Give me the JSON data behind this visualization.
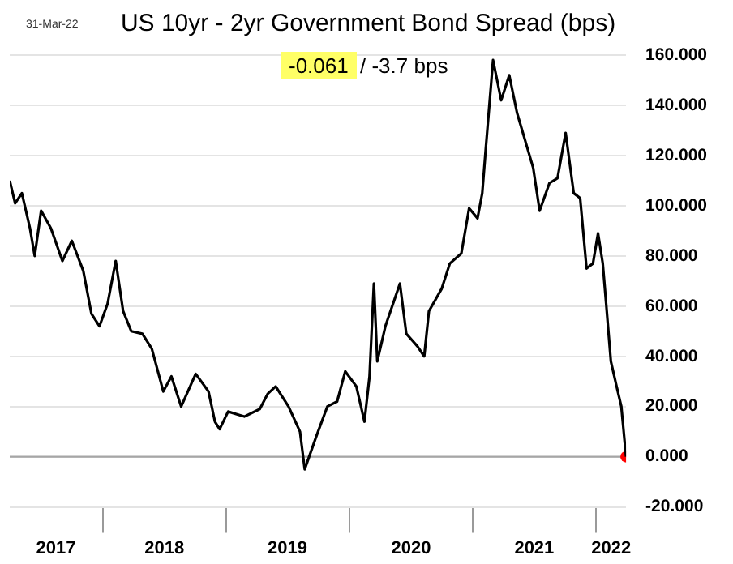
{
  "chart_data": {
    "type": "line",
    "title": "US 10yr - 2yr Government Bond Spread (bps)",
    "annotations": [
      "31-Mar-22",
      "-0.061",
      "/  -3.7 bps"
    ],
    "x": [
      "2017-03-31",
      "2017-04-16",
      "2017-05-06",
      "2017-05-30",
      "2017-06-13",
      "2017-07-02",
      "2017-07-31",
      "2017-09-03",
      "2017-10-01",
      "2017-11-04",
      "2017-11-28",
      "2017-12-22",
      "2018-01-15",
      "2018-02-08",
      "2018-03-02",
      "2018-03-26",
      "2018-04-28",
      "2018-05-26",
      "2018-06-05",
      "2018-06-29",
      "2018-07-23",
      "2018-08-21",
      "2018-10-03",
      "2018-11-10",
      "2018-11-29",
      "2018-12-13",
      "2019-01-07",
      "2019-02-24",
      "2019-04-11",
      "2019-05-04",
      "2019-05-28",
      "2019-07-05",
      "2019-08-08",
      "2019-08-22",
      "2019-09-25",
      "2019-10-28",
      "2019-11-26",
      "2019-12-20",
      "2020-01-22",
      "2020-02-15",
      "2020-03-01",
      "2020-03-14",
      "2020-03-24",
      "2020-04-17",
      "2020-05-30",
      "2020-06-18",
      "2020-07-21",
      "2020-08-10",
      "2020-08-24",
      "2020-10-01",
      "2020-10-25",
      "2020-11-28",
      "2020-12-21",
      "2021-01-15",
      "2021-01-29",
      "2021-02-08",
      "2021-03-02",
      "2021-03-26",
      "2021-04-19",
      "2021-05-12",
      "2021-06-29",
      "2021-07-18",
      "2021-08-16",
      "2021-09-09",
      "2021-10-03",
      "2021-10-27",
      "2021-11-15",
      "2021-12-04",
      "2021-12-23",
      "2022-01-07",
      "2022-01-21",
      "2022-01-31",
      "2022-02-14",
      "2022-03-03",
      "2022-03-17",
      "2022-03-31"
    ],
    "series": [
      {
        "type": "line",
        "color": "#000000",
        "marker": "none",
        "values": [
          110,
          101,
          105,
          91,
          80,
          98,
          91,
          78,
          86,
          74,
          57,
          52,
          61,
          78,
          58,
          50,
          49,
          43,
          38,
          26,
          32,
          20,
          33,
          26,
          14,
          11,
          18,
          16,
          19,
          25,
          28,
          20,
          10,
          -5,
          8,
          20,
          22,
          34,
          28,
          14,
          32,
          69,
          38,
          52,
          69,
          49,
          44,
          40,
          58,
          67,
          77,
          81,
          99,
          95,
          105,
          122,
          158,
          142,
          152,
          137,
          115,
          98,
          109,
          111,
          129,
          105,
          103,
          75,
          77,
          89,
          77,
          61,
          38,
          28,
          20,
          0
        ]
      },
      {
        "type": "scatter",
        "color": "#ff0000",
        "marker": "circle",
        "x": [
          "2022-03-31"
        ],
        "values": [
          0
        ]
      }
    ],
    "xlim": [
      "2017-03-31",
      "2022-03-31"
    ],
    "xticks": [
      {
        "value": "2018-01-01",
        "label": null
      },
      {
        "value": "2019-01-01",
        "label": null
      },
      {
        "value": "2020-01-01",
        "label": null
      },
      {
        "value": "2021-01-01",
        "label": null
      },
      {
        "value": "2022-01-01",
        "label": null
      },
      {
        "value": "2017-08-15",
        "label": "2017"
      },
      {
        "value": "2018-07-02",
        "label": "2018"
      },
      {
        "value": "2019-07-02",
        "label": "2019"
      },
      {
        "value": "2020-07-02",
        "label": "2020"
      },
      {
        "value": "2021-07-02",
        "label": "2021"
      },
      {
        "value": "2022-02-15",
        "label": "2022"
      }
    ],
    "ylim": [
      -20,
      160
    ],
    "yticks": [
      {
        "value": -20,
        "label": "-20.000"
      },
      {
        "value": 0,
        "label": "0.000"
      },
      {
        "value": 20,
        "label": "20.000"
      },
      {
        "value": 40,
        "label": "40.000"
      },
      {
        "value": 60,
        "label": "60.000"
      },
      {
        "value": 80,
        "label": "80.000"
      },
      {
        "value": 100,
        "label": "100.000"
      },
      {
        "value": 120,
        "label": "120.000"
      },
      {
        "value": 140,
        "label": "140.000"
      },
      {
        "value": 160,
        "label": "160.000"
      }
    ],
    "ref_lines": [
      {
        "axis": "y",
        "value": 0,
        "color": "#a6a6a6"
      }
    ],
    "grid": "y",
    "legend": false
  }
}
